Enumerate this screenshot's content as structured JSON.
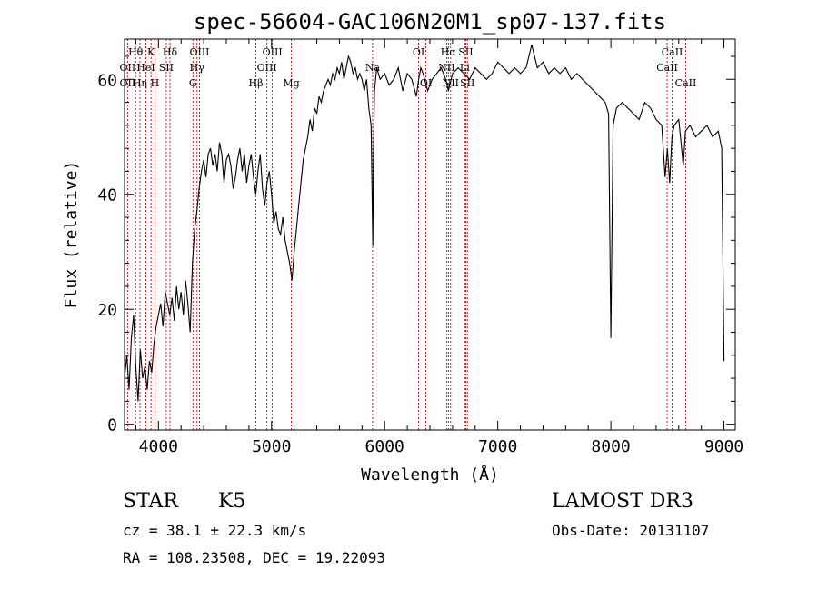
{
  "chart_data": {
    "type": "line",
    "title": "spec-56604-GAC106N20M1_sp07-137.fits",
    "xlabel": "Wavelength (Å)",
    "ylabel": "Flux (relative)",
    "xlim": [
      3700,
      9100
    ],
    "ylim": [
      -1,
      67
    ],
    "xticks": [
      4000,
      5000,
      6000,
      7000,
      8000,
      9000
    ],
    "yticks": [
      0,
      20,
      40,
      60
    ],
    "grid": false,
    "line_color": "#000000",
    "marker_color": "#cc0000",
    "series": [
      {
        "x": [
          3700,
          3720,
          3740,
          3760,
          3780,
          3800,
          3820,
          3840,
          3860,
          3880,
          3900,
          3920,
          3940,
          3960,
          3980,
          4000,
          4020,
          4040,
          4060,
          4080,
          4100,
          4120,
          4140,
          4160,
          4180,
          4200,
          4220,
          4240,
          4260,
          4280,
          4300,
          4320,
          4340,
          4360,
          4380,
          4400,
          4420,
          4440,
          4460,
          4480,
          4500,
          4520,
          4540,
          4560,
          4580,
          4600,
          4620,
          4640,
          4660,
          4680,
          4700,
          4720,
          4740,
          4760,
          4780,
          4800,
          4820,
          4840,
          4860,
          4880,
          4900,
          4920,
          4940,
          4960,
          4980,
          5000,
          5020,
          5040,
          5060,
          5080,
          5100,
          5120,
          5140,
          5160,
          5180,
          5200,
          5220,
          5240,
          5260,
          5280,
          5300,
          5320,
          5340,
          5360,
          5380,
          5400,
          5420,
          5440,
          5460,
          5480,
          5500,
          5520,
          5540,
          5560,
          5580,
          5600,
          5620,
          5640,
          5660,
          5680,
          5700,
          5720,
          5740,
          5760,
          5780,
          5800,
          5820,
          5840,
          5860,
          5880,
          5895,
          5900,
          5910,
          5930,
          5960,
          6000,
          6040,
          6080,
          6120,
          6160,
          6200,
          6240,
          6280,
          6300,
          6320,
          6340,
          6380,
          6420,
          6460,
          6500,
          6540,
          6563,
          6600,
          6650,
          6700,
          6750,
          6800,
          6850,
          6900,
          6950,
          7000,
          7050,
          7100,
          7150,
          7200,
          7250,
          7300,
          7350,
          7400,
          7450,
          7500,
          7550,
          7600,
          7650,
          7700,
          7750,
          7800,
          7850,
          7900,
          7950,
          7980,
          8000,
          8020,
          8050,
          8100,
          8150,
          8200,
          8250,
          8300,
          8350,
          8400,
          8450,
          8480,
          8500,
          8520,
          8540,
          8560,
          8600,
          8640,
          8660,
          8700,
          8750,
          8800,
          8850,
          8900,
          8950,
          8980,
          9000
        ],
        "values": [
          8,
          12,
          6,
          15,
          19,
          10,
          4,
          13,
          8,
          10,
          6,
          11,
          9,
          14,
          17,
          19,
          21,
          17,
          23,
          21,
          19,
          22,
          18,
          24,
          20,
          23,
          19,
          25,
          21,
          16,
          28,
          34,
          37,
          41,
          44,
          46,
          43,
          47,
          48,
          45,
          47,
          44,
          49,
          47,
          42,
          46,
          47,
          45,
          41,
          43,
          46,
          48,
          44,
          47,
          42,
          45,
          47,
          43,
          40,
          44,
          47,
          41,
          38,
          42,
          44,
          40,
          35,
          37,
          34,
          33,
          36,
          32,
          30,
          28,
          25,
          30,
          34,
          38,
          42,
          46,
          48,
          50,
          53,
          51,
          55,
          54,
          57,
          56,
          58,
          59,
          60,
          59,
          61,
          60,
          62,
          61,
          63,
          60,
          62,
          64,
          63,
          61,
          62,
          60,
          61,
          60,
          58,
          60,
          55,
          52,
          31,
          46,
          58,
          62,
          60,
          61,
          59,
          60,
          62,
          58,
          61,
          60,
          57,
          60,
          62,
          61,
          58,
          60,
          61,
          62,
          60,
          58,
          61,
          62,
          61,
          60,
          62,
          61,
          60,
          61,
          63,
          62,
          61,
          62,
          61,
          62,
          66,
          62,
          63,
          61,
          62,
          61,
          62,
          60,
          61,
          60,
          59,
          58,
          57,
          56,
          54,
          15,
          52,
          55,
          56,
          55,
          54,
          53,
          56,
          55,
          53,
          52,
          43,
          48,
          42,
          50,
          52,
          53,
          45,
          51,
          52,
          50,
          51,
          52,
          50,
          51,
          48,
          11
        ]
      }
    ],
    "line_markers": [
      {
        "label": "Hθ",
        "x": 3798,
        "row": 1
      },
      {
        "label": "OII",
        "x": 3727,
        "row": 2
      },
      {
        "label": "OII",
        "x": 3727,
        "row": 3
      },
      {
        "label": "Hη",
        "x": 3836,
        "row": 3
      },
      {
        "label": "HeI",
        "x": 3889,
        "row": 2
      },
      {
        "label": "K",
        "x": 3934,
        "row": 1
      },
      {
        "label": "SII",
        "x": 4069,
        "row": 2
      },
      {
        "label": "H",
        "x": 3969,
        "row": 3
      },
      {
        "label": "Hδ",
        "x": 4102,
        "row": 1
      },
      {
        "label": "OIII",
        "x": 4363,
        "row": 1
      },
      {
        "label": "Hγ",
        "x": 4341,
        "row": 2
      },
      {
        "label": "G",
        "x": 4305,
        "row": 3
      },
      {
        "label": "OIII",
        "x": 5007,
        "row": 1
      },
      {
        "label": "OIII",
        "x": 4959,
        "row": 2
      },
      {
        "label": "Hβ",
        "x": 4861,
        "row": 3
      },
      {
        "label": "Mg",
        "x": 5175,
        "row": 3
      },
      {
        "label": "Na",
        "x": 5893,
        "row": 2
      },
      {
        "label": "OI",
        "x": 6300,
        "row": 1
      },
      {
        "label": "OI",
        "x": 6364,
        "row": 3
      },
      {
        "label": "Hα",
        "x": 6563,
        "row": 1
      },
      {
        "label": "SII",
        "x": 6717,
        "row": 1
      },
      {
        "label": "NII",
        "x": 6548,
        "row": 2
      },
      {
        "label": "Li",
        "x": 6708,
        "row": 2
      },
      {
        "label": "NII",
        "x": 6583,
        "row": 3
      },
      {
        "label": "SII",
        "x": 6731,
        "row": 3
      },
      {
        "label": "CaII",
        "x": 8542,
        "row": 1
      },
      {
        "label": "CaII",
        "x": 8498,
        "row": 2
      },
      {
        "label": "CaII",
        "x": 8662,
        "row": 3
      }
    ]
  },
  "info": {
    "object_class": "STAR",
    "subclass": "K5",
    "survey": "LAMOST DR3",
    "cz": "cz = 38.1 ± 22.3 km/s",
    "obs_date": "Obs-Date: 20131107",
    "coords": "RA = 108.23508, DEC =  19.22093"
  }
}
